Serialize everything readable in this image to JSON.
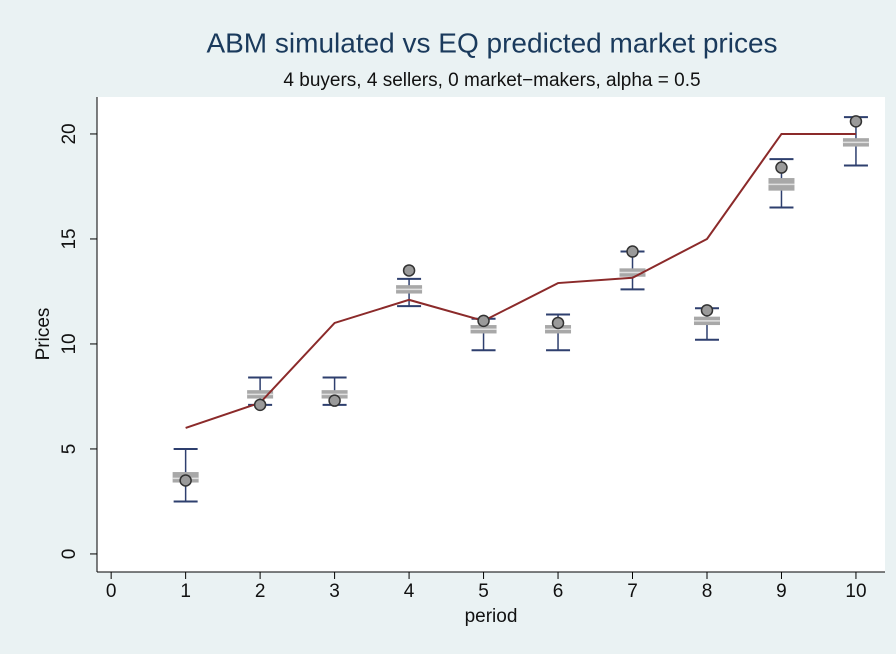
{
  "chart_data": {
    "type": "box",
    "title": "ABM simulated vs EQ predicted market prices",
    "subtitle": "4 buyers, 4 sellers, 0 market−makers, alpha = 0.5",
    "x_label": "period",
    "y_label": "Prices",
    "x": [
      1,
      2,
      3,
      4,
      5,
      6,
      7,
      8,
      9,
      10
    ],
    "whisker_low": [
      2.5,
      7.1,
      7.1,
      11.8,
      9.7,
      9.7,
      12.6,
      10.2,
      16.5,
      18.5
    ],
    "q1": [
      3.4,
      7.4,
      7.4,
      12.4,
      10.5,
      10.5,
      13.2,
      10.9,
      17.3,
      19.4
    ],
    "median": [
      3.6,
      7.6,
      7.6,
      12.6,
      10.7,
      10.7,
      13.4,
      11.1,
      17.6,
      19.6
    ],
    "q3": [
      3.9,
      7.8,
      7.8,
      12.8,
      10.9,
      10.9,
      13.6,
      11.3,
      17.9,
      19.8
    ],
    "whisker_high": [
      5.0,
      8.4,
      8.4,
      13.1,
      11.2,
      11.4,
      14.4,
      11.7,
      18.8,
      20.8
    ],
    "points": [
      3.5,
      7.1,
      7.3,
      13.5,
      11.1,
      11.0,
      14.4,
      11.6,
      18.4,
      20.6
    ],
    "line": [
      6,
      7.2,
      11,
      12.1,
      11.1,
      12.9,
      13.15,
      15,
      20,
      20
    ],
    "box_color": "#a8a8a8",
    "whisker_color": "#2e3f6e",
    "line_color": "#8b2a2a",
    "point_color": "#9a9a9a",
    "xlim": [
      -0.19,
      10.39
    ],
    "xticks": [
      0,
      1,
      2,
      3,
      4,
      5,
      6,
      7,
      8,
      9,
      10
    ],
    "ylim": [
      -0.86,
      21.76
    ],
    "yticks": [
      0,
      5,
      10,
      15,
      20
    ],
    "grid": false
  }
}
